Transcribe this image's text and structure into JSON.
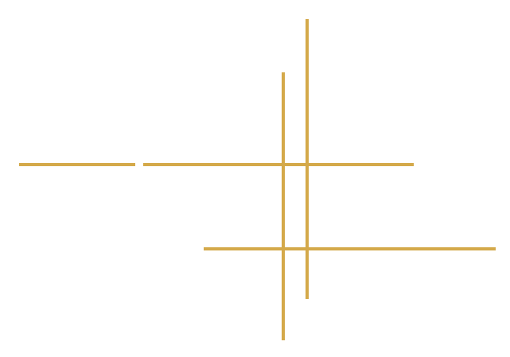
{
  "colors": {
    "background": "#ffffff",
    "line": "#d4a94a"
  }
}
